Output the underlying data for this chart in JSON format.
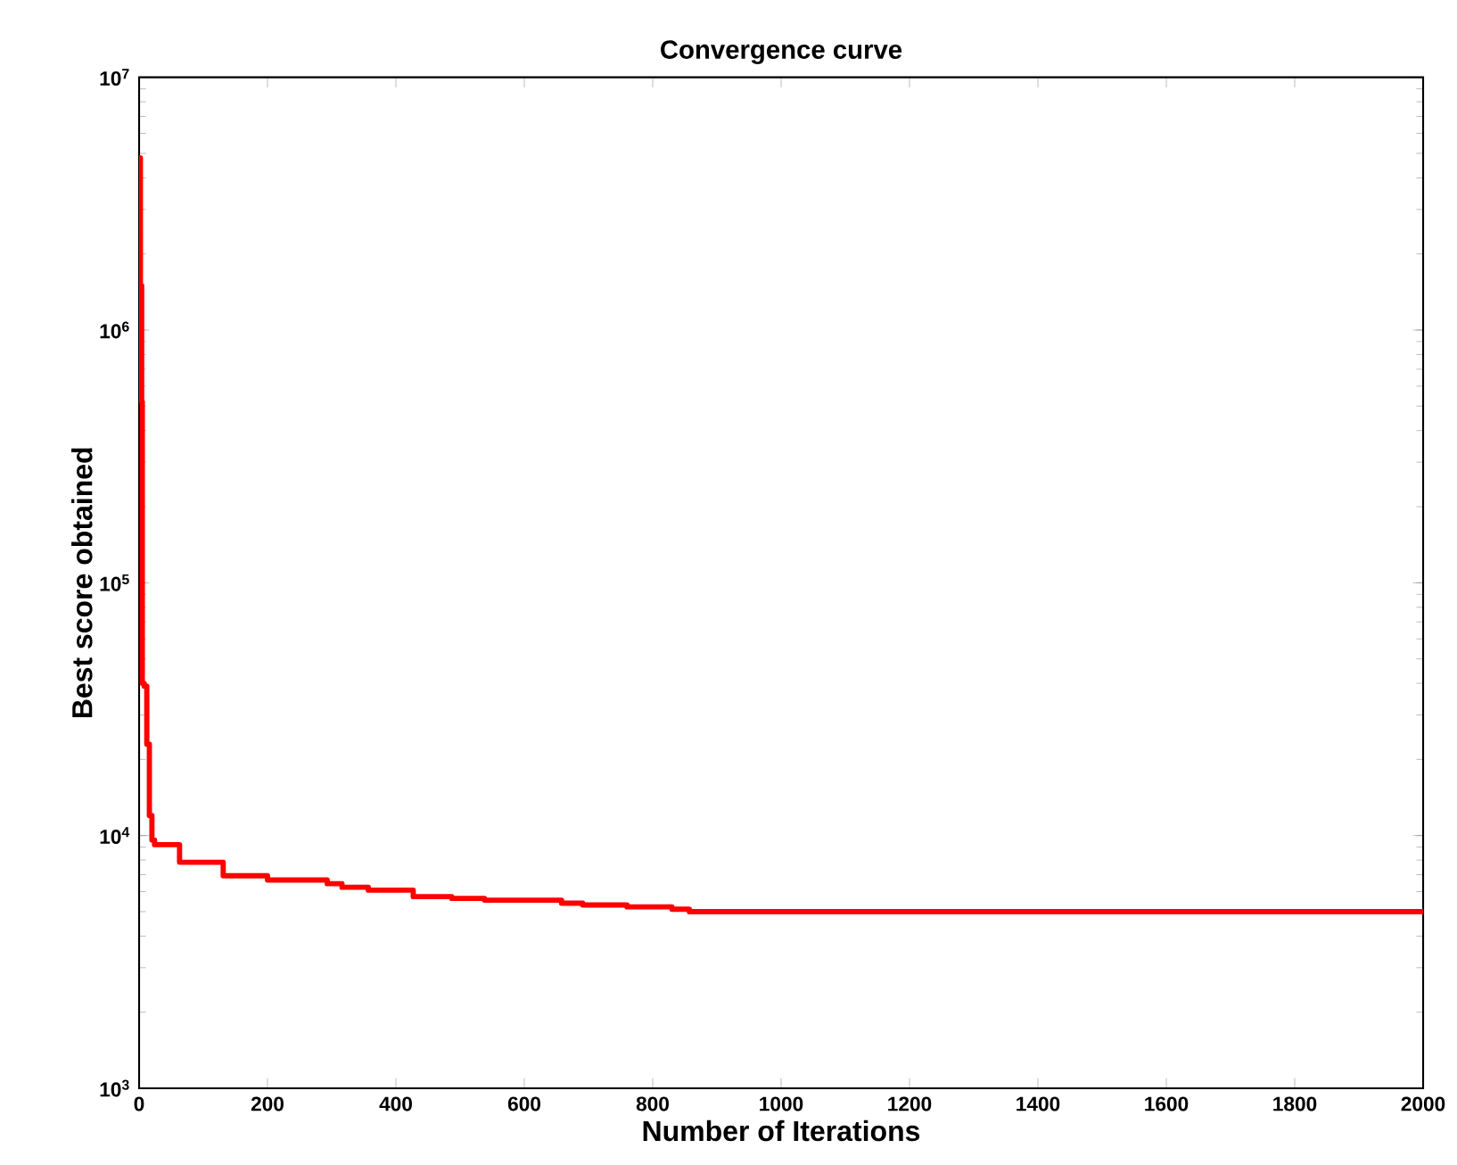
{
  "chart_data": {
    "type": "step",
    "title": "Convergence curve",
    "xlabel": "Number of Iterations",
    "ylabel": "Best score obtained",
    "series": [
      {
        "color": "#ff0000",
        "x": [
          0,
          2,
          4,
          5,
          8,
          12,
          16,
          20,
          24,
          63,
          131,
          200,
          293,
          316,
          357,
          427,
          487,
          538,
          658,
          691,
          760,
          830,
          857,
          2000
        ],
        "values": [
          4800000,
          1500000,
          520000,
          40000,
          39000,
          23000,
          12000,
          9600,
          9200,
          7840,
          6930,
          6670,
          6450,
          6240,
          6080,
          5730,
          5640,
          5550,
          5400,
          5310,
          5220,
          5110,
          5000,
          5000
        ]
      }
    ],
    "log": "y",
    "xlim": [
      0,
      2000
    ],
    "ylim": [
      1000,
      10000000
    ],
    "xticks": [
      0,
      200,
      400,
      600,
      800,
      1000,
      1200,
      1400,
      1600,
      1800,
      2000
    ],
    "yticks": [
      {
        "value": 1000,
        "label": "10$^{3}$"
      },
      {
        "value": 10000,
        "label": "10$^{4}$"
      },
      {
        "value": 100000,
        "label": "10$^{5}$"
      },
      {
        "value": 1000000,
        "label": "10$^{6}$"
      },
      {
        "value": 10000000,
        "label": "10$^{7}$"
      }
    ],
    "marker": "none",
    "line_style": "solid"
  }
}
